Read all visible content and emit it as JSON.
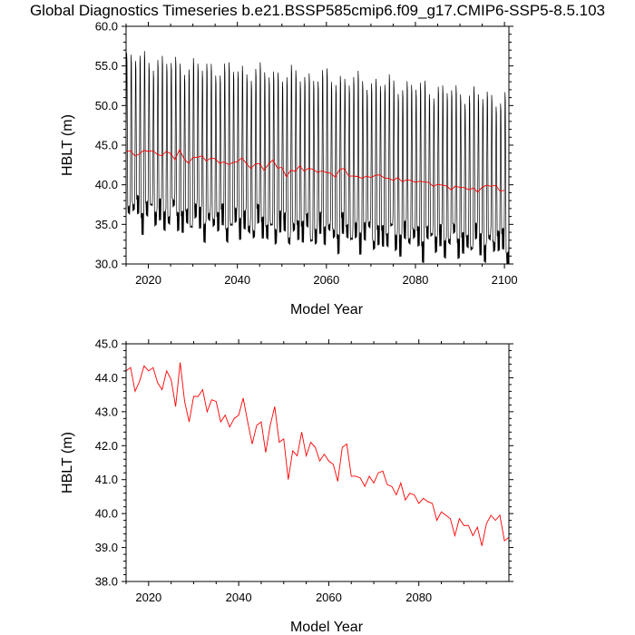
{
  "page": {
    "title": "Global Diagnostics Timeseries b.e21.BSSP585cmip6.f09_g17.CMIP6-SSP5-8.5.103"
  },
  "colors": {
    "monthly": "#000000",
    "annual": "#ff0000",
    "axis": "#000000",
    "background": "#ffffff"
  },
  "chart_data": [
    {
      "type": "line",
      "xlabel": "Model Year",
      "ylabel": "HBLT (m)",
      "xlim": [
        2015,
        2101
      ],
      "ylim": [
        30.0,
        60.0
      ],
      "x_ticks": [
        2020,
        2040,
        2060,
        2080,
        2100
      ],
      "x_tick_labels": [
        "2020",
        "2040",
        "2060",
        "2080",
        "2100"
      ],
      "y_ticks": [
        30,
        35,
        40,
        45,
        50,
        55,
        60
      ],
      "y_tick_labels": [
        "30.0",
        "35.0",
        "40.0",
        "45.0",
        "50.0",
        "55.0",
        "60.0"
      ],
      "grid": false,
      "legend": "none",
      "series": [
        {
          "kind": "monthly",
          "color": "#000000",
          "note": "monthly values, one seasonal cycle per year",
          "years": [
            2015,
            2020,
            2030,
            2040,
            2050,
            2060,
            2070,
            2080,
            2090,
            2100
          ],
          "annual_max": [
            57.2,
            56.8,
            56.0,
            55.5,
            55.0,
            54.6,
            54.0,
            53.4,
            52.6,
            51.8
          ],
          "annual_min": [
            37.0,
            36.5,
            35.5,
            35.0,
            34.4,
            34.0,
            33.6,
            33.2,
            32.8,
            32.4
          ]
        },
        {
          "kind": "annual",
          "color": "#ff0000",
          "x": [
            2015,
            2016,
            2017,
            2018,
            2019,
            2020,
            2021,
            2022,
            2023,
            2024,
            2025,
            2026,
            2027,
            2028,
            2029,
            2030,
            2031,
            2032,
            2033,
            2034,
            2035,
            2036,
            2037,
            2038,
            2039,
            2040,
            2041,
            2042,
            2043,
            2044,
            2045,
            2046,
            2047,
            2048,
            2049,
            2050,
            2051,
            2052,
            2053,
            2054,
            2055,
            2056,
            2057,
            2058,
            2059,
            2060,
            2061,
            2062,
            2063,
            2064,
            2065,
            2066,
            2067,
            2068,
            2069,
            2070,
            2071,
            2072,
            2073,
            2074,
            2075,
            2076,
            2077,
            2078,
            2079,
            2080,
            2081,
            2082,
            2083,
            2084,
            2085,
            2086,
            2087,
            2088,
            2089,
            2090,
            2091,
            2092,
            2093,
            2094,
            2095,
            2096,
            2097,
            2098,
            2099,
            2100
          ],
          "y": [
            44.2,
            44.3,
            43.6,
            43.9,
            44.35,
            44.2,
            44.3,
            43.85,
            43.65,
            44.2,
            43.95,
            43.15,
            44.45,
            43.3,
            42.7,
            43.45,
            43.45,
            43.65,
            43.0,
            43.35,
            43.3,
            42.7,
            42.9,
            42.55,
            42.8,
            42.9,
            43.4,
            42.7,
            42.05,
            42.6,
            42.7,
            41.8,
            42.6,
            43.15,
            42.1,
            42.2,
            41.0,
            41.85,
            41.7,
            42.4,
            41.7,
            42.1,
            41.95,
            41.55,
            41.75,
            41.55,
            41.45,
            40.95,
            41.95,
            42.05,
            41.1,
            41.1,
            41.05,
            40.8,
            41.1,
            40.9,
            41.2,
            41.25,
            40.85,
            40.8,
            40.55,
            40.9,
            40.4,
            40.6,
            40.55,
            40.3,
            40.45,
            40.35,
            40.3,
            39.8,
            40.05,
            39.95,
            39.85,
            39.35,
            39.85,
            39.65,
            39.65,
            39.35,
            39.6,
            39.05,
            39.7,
            39.95,
            39.8,
            39.95,
            39.2,
            39.3
          ]
        }
      ]
    },
    {
      "type": "line",
      "xlabel": "Model Year",
      "ylabel": "HBLT (m)",
      "xlim": [
        2015,
        2100
      ],
      "ylim": [
        38.0,
        45.0
      ],
      "x_ticks": [
        2020,
        2040,
        2060,
        2080
      ],
      "x_tick_labels": [
        "2020",
        "2040",
        "2060",
        "2080"
      ],
      "y_ticks": [
        38,
        39,
        40,
        41,
        42,
        43,
        44,
        45
      ],
      "y_tick_labels": [
        "38.0",
        "39.0",
        "40.0",
        "41.0",
        "42.0",
        "43.0",
        "44.0",
        "45.0"
      ],
      "grid": false,
      "legend": "none",
      "series": [
        {
          "kind": "annual",
          "color": "#ff0000",
          "x": [
            2015,
            2016,
            2017,
            2018,
            2019,
            2020,
            2021,
            2022,
            2023,
            2024,
            2025,
            2026,
            2027,
            2028,
            2029,
            2030,
            2031,
            2032,
            2033,
            2034,
            2035,
            2036,
            2037,
            2038,
            2039,
            2040,
            2041,
            2042,
            2043,
            2044,
            2045,
            2046,
            2047,
            2048,
            2049,
            2050,
            2051,
            2052,
            2053,
            2054,
            2055,
            2056,
            2057,
            2058,
            2059,
            2060,
            2061,
            2062,
            2063,
            2064,
            2065,
            2066,
            2067,
            2068,
            2069,
            2070,
            2071,
            2072,
            2073,
            2074,
            2075,
            2076,
            2077,
            2078,
            2079,
            2080,
            2081,
            2082,
            2083,
            2084,
            2085,
            2086,
            2087,
            2088,
            2089,
            2090,
            2091,
            2092,
            2093,
            2094,
            2095,
            2096,
            2097,
            2098,
            2099,
            2100
          ],
          "y": [
            44.2,
            44.3,
            43.6,
            43.9,
            44.35,
            44.2,
            44.3,
            43.85,
            43.65,
            44.2,
            43.95,
            43.15,
            44.45,
            43.3,
            42.7,
            43.45,
            43.45,
            43.65,
            43.0,
            43.35,
            43.3,
            42.7,
            42.9,
            42.55,
            42.8,
            42.9,
            43.4,
            42.7,
            42.05,
            42.6,
            42.7,
            41.8,
            42.6,
            43.15,
            42.1,
            42.2,
            41.0,
            41.85,
            41.7,
            42.4,
            41.7,
            42.1,
            41.95,
            41.55,
            41.75,
            41.55,
            41.45,
            40.95,
            41.95,
            42.05,
            41.1,
            41.1,
            41.05,
            40.8,
            41.1,
            40.9,
            41.2,
            41.25,
            40.85,
            40.8,
            40.55,
            40.9,
            40.4,
            40.6,
            40.55,
            40.3,
            40.45,
            40.35,
            40.3,
            39.8,
            40.05,
            39.95,
            39.85,
            39.35,
            39.85,
            39.65,
            39.65,
            39.35,
            39.6,
            39.05,
            39.7,
            39.95,
            39.8,
            39.95,
            39.2,
            39.3
          ]
        }
      ]
    }
  ]
}
